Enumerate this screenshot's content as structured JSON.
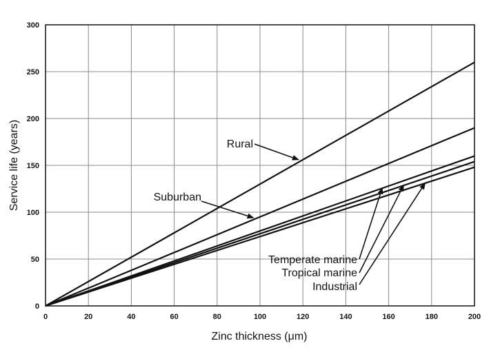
{
  "chart_data": {
    "type": "line",
    "title": "",
    "xlabel": "Zinc thickness (μm)",
    "ylabel": "Service life (years)",
    "xlim": [
      0,
      200
    ],
    "ylim": [
      0,
      300
    ],
    "xticks": [
      0,
      20,
      40,
      60,
      80,
      100,
      120,
      140,
      160,
      180,
      200
    ],
    "yticks": [
      0,
      50,
      100,
      150,
      200,
      250,
      300
    ],
    "grid": true,
    "legend": "none (inline annotations with arrows)",
    "line_color": "#111111",
    "series": [
      {
        "name": "Rural",
        "x": [
          0,
          200
        ],
        "y": [
          0,
          260
        ]
      },
      {
        "name": "Suburban",
        "x": [
          0,
          200
        ],
        "y": [
          0,
          190
        ]
      },
      {
        "name": "Temperate marine",
        "x": [
          0,
          200
        ],
        "y": [
          0,
          160
        ]
      },
      {
        "name": "Tropical marine",
        "x": [
          0,
          200
        ],
        "y": [
          0,
          154
        ]
      },
      {
        "name": "Industrial",
        "x": [
          0,
          200
        ],
        "y": [
          0,
          148
        ]
      }
    ],
    "annotations": [
      {
        "text": "Rural",
        "series": "Rural",
        "arrow_to": [
          118,
          156
        ]
      },
      {
        "text": "Suburban",
        "series": "Suburban",
        "arrow_to": [
          97,
          94
        ]
      },
      {
        "text": "Temperate marine",
        "series": "Temperate marine",
        "arrow_to": [
          157,
          126
        ]
      },
      {
        "text": "Tropical marine",
        "series": "Tropical marine",
        "arrow_to": [
          167,
          129
        ]
      },
      {
        "text": "Industrial",
        "series": "Industrial",
        "arrow_to": [
          177,
          131
        ]
      }
    ]
  }
}
